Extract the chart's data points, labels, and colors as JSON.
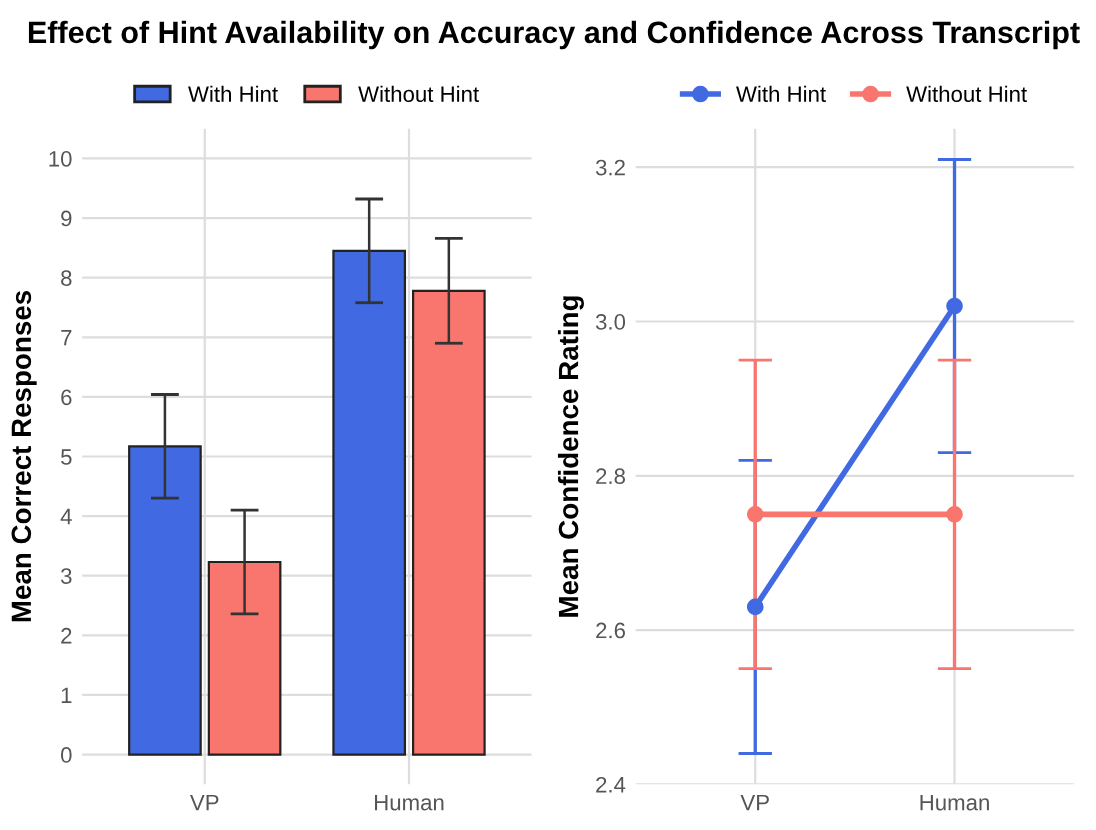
{
  "chart_data": [
    {
      "type": "bar",
      "title": "Effect of Hint Availability on Accuracy and Confidence Across Transcript",
      "ylabel": "Mean Correct Responses",
      "categories": [
        "VP",
        "Human"
      ],
      "series": [
        {
          "name": "With Hint",
          "color": "#4169e1",
          "values": [
            5.17,
            8.45
          ],
          "errors": [
            0.87,
            0.87
          ]
        },
        {
          "name": "Without Hint",
          "color": "#f8766d",
          "values": [
            3.23,
            7.78
          ],
          "errors": [
            0.87,
            0.88
          ]
        }
      ],
      "ylim": [
        -0.5,
        10.5
      ],
      "yticks": [
        0,
        1,
        2,
        3,
        4,
        5,
        6,
        7,
        8,
        9,
        10
      ],
      "grid": true,
      "legend": "top"
    },
    {
      "type": "line",
      "ylabel": "Mean Confidence Rating",
      "categories": [
        "VP",
        "Human"
      ],
      "series": [
        {
          "name": "With Hint",
          "color": "#4169e1",
          "values": [
            2.63,
            3.02
          ],
          "errors": [
            0.19,
            0.19
          ]
        },
        {
          "name": "Without Hint",
          "color": "#f8766d",
          "values": [
            2.75,
            2.75
          ],
          "errors": [
            0.2,
            0.2
          ]
        }
      ],
      "ylim": [
        2.4,
        3.25
      ],
      "yticks": [
        {
          "value": 2.4,
          "label": "2.4"
        },
        {
          "value": 2.6,
          "label": "2.6"
        },
        {
          "value": 2.8,
          "label": "2.8"
        },
        {
          "value": 3.0,
          "label": "3.0"
        },
        {
          "value": 3.2,
          "label": "3.2"
        }
      ],
      "grid": true,
      "legend": "top",
      "marker": "circle",
      "line_style": "solid"
    }
  ]
}
